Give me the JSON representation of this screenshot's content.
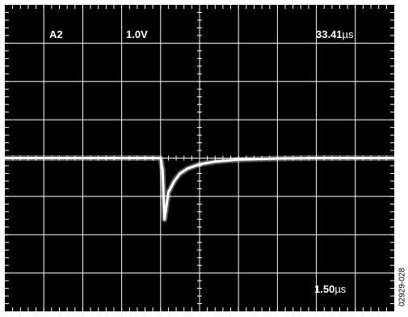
{
  "chart_data": {
    "type": "line",
    "title": "",
    "annotations": {
      "channel": "A2",
      "volts_per_div": "1.0V",
      "time_readout_value": "33.41",
      "time_per_div_value": "1.50",
      "time_unit": "µs"
    },
    "xlim": [
      0,
      10
    ],
    "ylim": [
      -4,
      4
    ],
    "grid": true,
    "series": [
      {
        "x": [
          0,
          1,
          2,
          3,
          4,
          4.05,
          4.1,
          4.2,
          4.35,
          4.5,
          4.7,
          5.0,
          5.4,
          6.0,
          7.0,
          8.0,
          9.0,
          10.0
        ],
        "values": [
          0,
          0,
          0,
          0,
          0,
          -0.3,
          -1.6,
          -0.9,
          -0.6,
          -0.4,
          -0.27,
          -0.16,
          -0.09,
          -0.04,
          -0.01,
          0,
          0,
          0
        ]
      }
    ]
  },
  "figure_code": "02929-028",
  "colors": {
    "background": "#000000",
    "grid": "#ffffff",
    "trace": "#ffffff"
  }
}
